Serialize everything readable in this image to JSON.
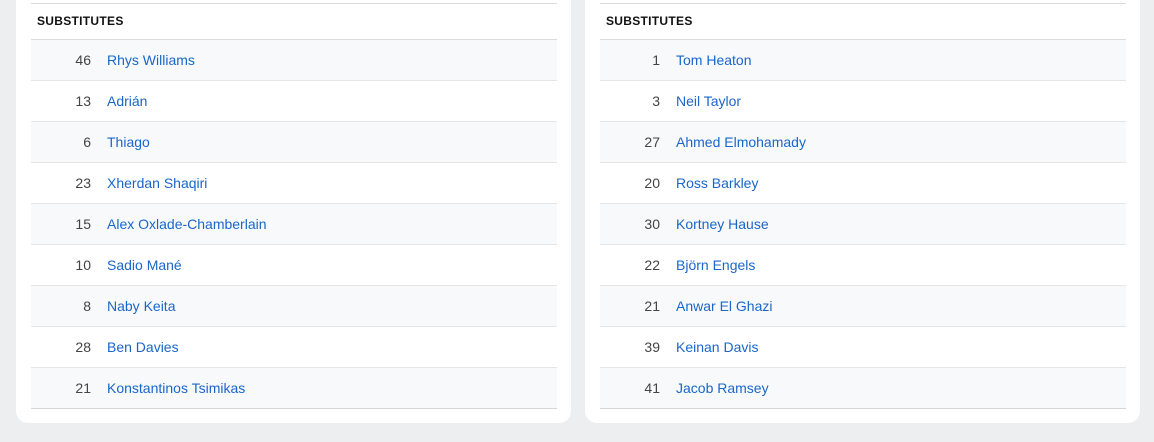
{
  "left": {
    "title": "SUBSTITUTES",
    "players": [
      {
        "number": "46",
        "name": "Rhys Williams"
      },
      {
        "number": "13",
        "name": "Adrián"
      },
      {
        "number": "6",
        "name": "Thiago"
      },
      {
        "number": "23",
        "name": "Xherdan Shaqiri"
      },
      {
        "number": "15",
        "name": "Alex Oxlade-Chamberlain"
      },
      {
        "number": "10",
        "name": "Sadio Mané"
      },
      {
        "number": "8",
        "name": "Naby Keita"
      },
      {
        "number": "28",
        "name": "Ben Davies"
      },
      {
        "number": "21",
        "name": "Konstantinos Tsimikas"
      }
    ]
  },
  "right": {
    "title": "SUBSTITUTES",
    "players": [
      {
        "number": "1",
        "name": "Tom Heaton"
      },
      {
        "number": "3",
        "name": "Neil Taylor"
      },
      {
        "number": "27",
        "name": "Ahmed Elmohamady"
      },
      {
        "number": "20",
        "name": "Ross Barkley"
      },
      {
        "number": "30",
        "name": "Kortney Hause"
      },
      {
        "number": "22",
        "name": "Björn Engels"
      },
      {
        "number": "21",
        "name": "Anwar El Ghazi"
      },
      {
        "number": "39",
        "name": "Keinan Davis"
      },
      {
        "number": "41",
        "name": "Jacob Ramsey"
      }
    ]
  },
  "colors": {
    "link": "#1a66c9",
    "background": "#edeef0"
  }
}
